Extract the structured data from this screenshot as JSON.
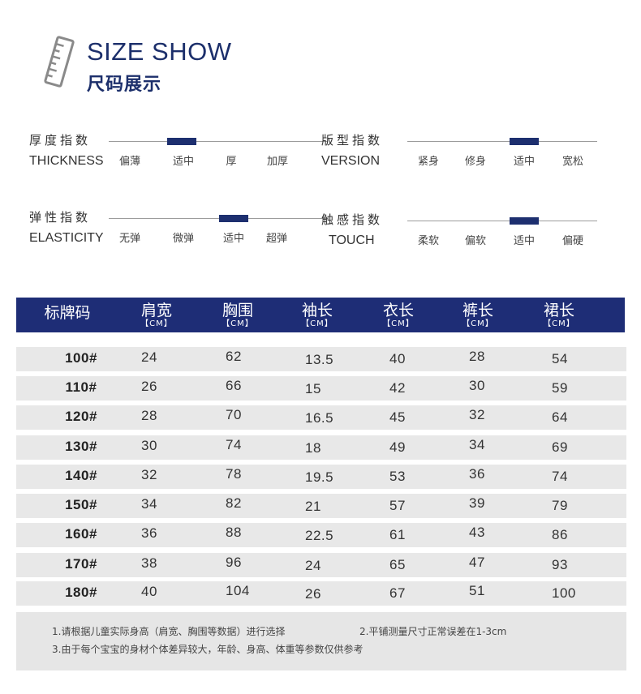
{
  "header": {
    "title_en": "SIZE SHOW",
    "title_cn": "尺码展示",
    "icon": "ruler-icon"
  },
  "scales": [
    {
      "label_cn": "厚度指数",
      "label_en": "THICKNESS",
      "options": [
        "偏薄",
        "适中",
        "厚",
        "加厚"
      ],
      "selected_index": 1
    },
    {
      "label_cn": "版型指数",
      "label_en": "VERSION",
      "options": [
        "紧身",
        "修身",
        "适中",
        "宽松"
      ],
      "selected_index": 2
    },
    {
      "label_cn": "弹性指数",
      "label_en": "ELASTICITY",
      "options": [
        "无弹",
        "微弹",
        "适中",
        "超弹"
      ],
      "selected_index": 2
    },
    {
      "label_cn": "触感指数",
      "label_en": "TOUCH",
      "options": [
        "柔软",
        "偏软",
        "适中",
        "偏硬"
      ],
      "selected_index": 2
    }
  ],
  "table": {
    "columns": [
      {
        "label": "标牌码",
        "unit": ""
      },
      {
        "label": "肩宽",
        "unit": "【CM】"
      },
      {
        "label": "胸围",
        "unit": "【CM】"
      },
      {
        "label": "袖长",
        "unit": "【CM】"
      },
      {
        "label": "衣长",
        "unit": "【CM】"
      },
      {
        "label": "裤长",
        "unit": "【CM】"
      },
      {
        "label": "裙长",
        "unit": "【CM】"
      }
    ],
    "rows": [
      [
        "100#",
        "24",
        "62",
        "13.5",
        "40",
        "28",
        "54"
      ],
      [
        "110#",
        "26",
        "66",
        "15",
        "42",
        "30",
        "59"
      ],
      [
        "120#",
        "28",
        "70",
        "16.5",
        "45",
        "32",
        "64"
      ],
      [
        "130#",
        "30",
        "74",
        "18",
        "49",
        "34",
        "69"
      ],
      [
        "140#",
        "32",
        "78",
        "19.5",
        "53",
        "36",
        "74"
      ],
      [
        "150#",
        "34",
        "82",
        "21",
        "57",
        "39",
        "79"
      ],
      [
        "160#",
        "36",
        "88",
        "22.5",
        "61",
        "43",
        "86"
      ],
      [
        "170#",
        "38",
        "96",
        "24",
        "65",
        "47",
        "93"
      ],
      [
        "180#",
        "40",
        "104",
        "26",
        "67",
        "51",
        "100"
      ]
    ]
  },
  "notes": {
    "note1": "1.请根据儿童实际身高（肩宽、胸围等数据）进行选择",
    "note2": "2.平铺测量尺寸正常误差在1-3cm",
    "note3": "3.由于每个宝宝的身材个体差异较大，年龄、身高、体重等参数仅供参考"
  },
  "colors": {
    "accent": "#1e2d76",
    "row_bg": "#e8e8e8",
    "title": "#1c2f6b"
  }
}
